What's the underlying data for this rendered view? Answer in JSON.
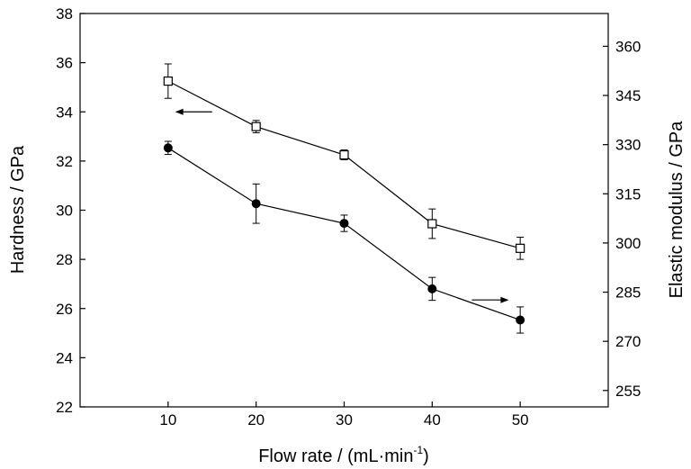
{
  "chart_data": {
    "type": "scatter",
    "x": [
      10,
      20,
      30,
      40,
      50
    ],
    "xlabel": {
      "main": "Flow rate / (mL·min",
      "sup": "-1",
      "tail": ")"
    },
    "ylabel": "Hardness / GPa",
    "y2label": "Elastic modulus / GPa",
    "xlim": [
      0,
      60
    ],
    "ylim": [
      22,
      38
    ],
    "y2lim": [
      250,
      370
    ],
    "xticks": [
      10,
      20,
      30,
      40,
      50
    ],
    "yticks": [
      22,
      24,
      26,
      28,
      30,
      32,
      34,
      36,
      38
    ],
    "y2ticks": [
      255,
      270,
      285,
      300,
      315,
      330,
      345,
      360
    ],
    "grid": false,
    "series": [
      {
        "axis": "left",
        "marker": "open-square",
        "values": [
          35.25,
          33.4,
          32.25,
          29.45,
          28.45
        ],
        "errors": [
          0.7,
          0.25,
          0.2,
          0.6,
          0.45
        ]
      },
      {
        "axis": "right",
        "marker": "filled-circle",
        "values": [
          329.0,
          312.0,
          306.0,
          286.0,
          276.5
        ],
        "errors": [
          2.0,
          6.0,
          2.5,
          3.5,
          4.0
        ]
      }
    ],
    "annotations": [
      {
        "type": "arrow",
        "direction": "left",
        "x_from": 15,
        "x_to": 10.8,
        "y": 34.0,
        "axis": "left"
      },
      {
        "type": "arrow",
        "direction": "right",
        "x_from": 44.5,
        "x_to": 48.7,
        "y": 26.35,
        "axis": "left"
      }
    ]
  }
}
